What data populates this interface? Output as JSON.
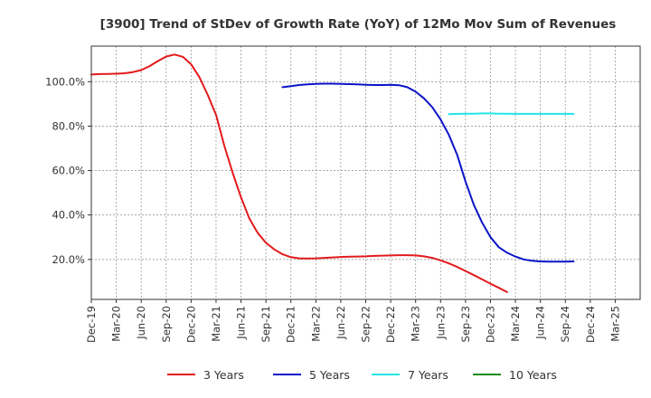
{
  "chart_data": {
    "type": "line",
    "title": "[3900]  Trend of StDev of Growth Rate (YoY) of 12Mo Mov Sum of Revenues",
    "xlabel": "",
    "ylabel": "",
    "x_ticks": [
      "Dec-19",
      "Mar-20",
      "Jun-20",
      "Sep-20",
      "Dec-20",
      "Mar-21",
      "Jun-21",
      "Sep-21",
      "Dec-21",
      "Mar-22",
      "Jun-22",
      "Sep-22",
      "Dec-22",
      "Mar-23",
      "Jun-23",
      "Sep-23",
      "Dec-23",
      "Mar-24",
      "Jun-24",
      "Sep-24",
      "Dec-24",
      "Mar-25"
    ],
    "y_ticks": [
      20,
      40,
      60,
      80,
      100
    ],
    "y_tick_labels": [
      "20.0%",
      "40.0%",
      "60.0%",
      "80.0%",
      "100.0%"
    ],
    "ylim": [
      2,
      116
    ],
    "grid": true,
    "legend_position": "bottom",
    "series": [
      {
        "name": "3 Years",
        "color": "#e31a1c",
        "points": [
          [
            0,
            103.2
          ],
          [
            1,
            103.4
          ],
          [
            2,
            103.5
          ],
          [
            3,
            103.6
          ],
          [
            4,
            103.8
          ],
          [
            5,
            104.3
          ],
          [
            6,
            105.2
          ],
          [
            7,
            107.0
          ],
          [
            8,
            109.3
          ],
          [
            9,
            111.3
          ],
          [
            10,
            112.2
          ],
          [
            11,
            111.2
          ],
          [
            12,
            107.8
          ],
          [
            13,
            102.0
          ],
          [
            14,
            94.0
          ],
          [
            15,
            85.0
          ],
          [
            16,
            71.0
          ],
          [
            17,
            59.0
          ],
          [
            18,
            48.0
          ],
          [
            19,
            38.5
          ],
          [
            20,
            32.0
          ],
          [
            21,
            27.5
          ],
          [
            22,
            24.5
          ],
          [
            23,
            22.3
          ],
          [
            24,
            21.0
          ],
          [
            25,
            20.5
          ],
          [
            26,
            20.4
          ],
          [
            27,
            20.5
          ],
          [
            28,
            20.7
          ],
          [
            29,
            20.9
          ],
          [
            30,
            21.1
          ],
          [
            31,
            21.2
          ],
          [
            32,
            21.3
          ],
          [
            33,
            21.4
          ],
          [
            34,
            21.6
          ],
          [
            35,
            21.7
          ],
          [
            36,
            21.8
          ],
          [
            37,
            21.9
          ],
          [
            38,
            21.9
          ],
          [
            39,
            21.8
          ],
          [
            40,
            21.4
          ],
          [
            41,
            20.7
          ],
          [
            42,
            19.6
          ],
          [
            43,
            18.2
          ],
          [
            44,
            16.6
          ],
          [
            45,
            14.8
          ],
          [
            46,
            12.9
          ],
          [
            47,
            11.0
          ],
          [
            48,
            9.1
          ],
          [
            49,
            7.2
          ],
          [
            50,
            5.3
          ]
        ]
      },
      {
        "name": "5 Years",
        "color": "#0a14c8",
        "points": [
          [
            23,
            97.5
          ],
          [
            24,
            98.0
          ],
          [
            25,
            98.5
          ],
          [
            26,
            98.8
          ],
          [
            27,
            99.0
          ],
          [
            28,
            99.1
          ],
          [
            29,
            99.1
          ],
          [
            30,
            99.0
          ],
          [
            31,
            98.9
          ],
          [
            32,
            98.8
          ],
          [
            33,
            98.6
          ],
          [
            34,
            98.5
          ],
          [
            35,
            98.5
          ],
          [
            36,
            98.6
          ],
          [
            37,
            98.4
          ],
          [
            38,
            97.5
          ],
          [
            39,
            95.5
          ],
          [
            40,
            92.5
          ],
          [
            41,
            88.5
          ],
          [
            42,
            83.0
          ],
          [
            43,
            76.0
          ],
          [
            44,
            67.0
          ],
          [
            45,
            55.0
          ],
          [
            46,
            44.5
          ],
          [
            47,
            36.5
          ],
          [
            48,
            30.0
          ],
          [
            49,
            25.5
          ],
          [
            50,
            23.0
          ],
          [
            51,
            21.3
          ],
          [
            52,
            20.0
          ],
          [
            53,
            19.4
          ],
          [
            54,
            19.1
          ],
          [
            55,
            19.0
          ],
          [
            56,
            19.0
          ],
          [
            57,
            19.0
          ],
          [
            58,
            19.1
          ]
        ]
      },
      {
        "name": "7 Years",
        "color": "#22e5e8",
        "points": [
          [
            43,
            85.4
          ],
          [
            44,
            85.5
          ],
          [
            45,
            85.6
          ],
          [
            46,
            85.6
          ],
          [
            47,
            85.7
          ],
          [
            48,
            85.7
          ],
          [
            49,
            85.6
          ],
          [
            50,
            85.6
          ],
          [
            51,
            85.5
          ],
          [
            52,
            85.5
          ],
          [
            53,
            85.5
          ],
          [
            54,
            85.5
          ],
          [
            55,
            85.5
          ],
          [
            56,
            85.5
          ],
          [
            57,
            85.5
          ],
          [
            58,
            85.5
          ]
        ]
      },
      {
        "name": "10 Years",
        "color": "#1c8c1c",
        "points": []
      }
    ]
  }
}
